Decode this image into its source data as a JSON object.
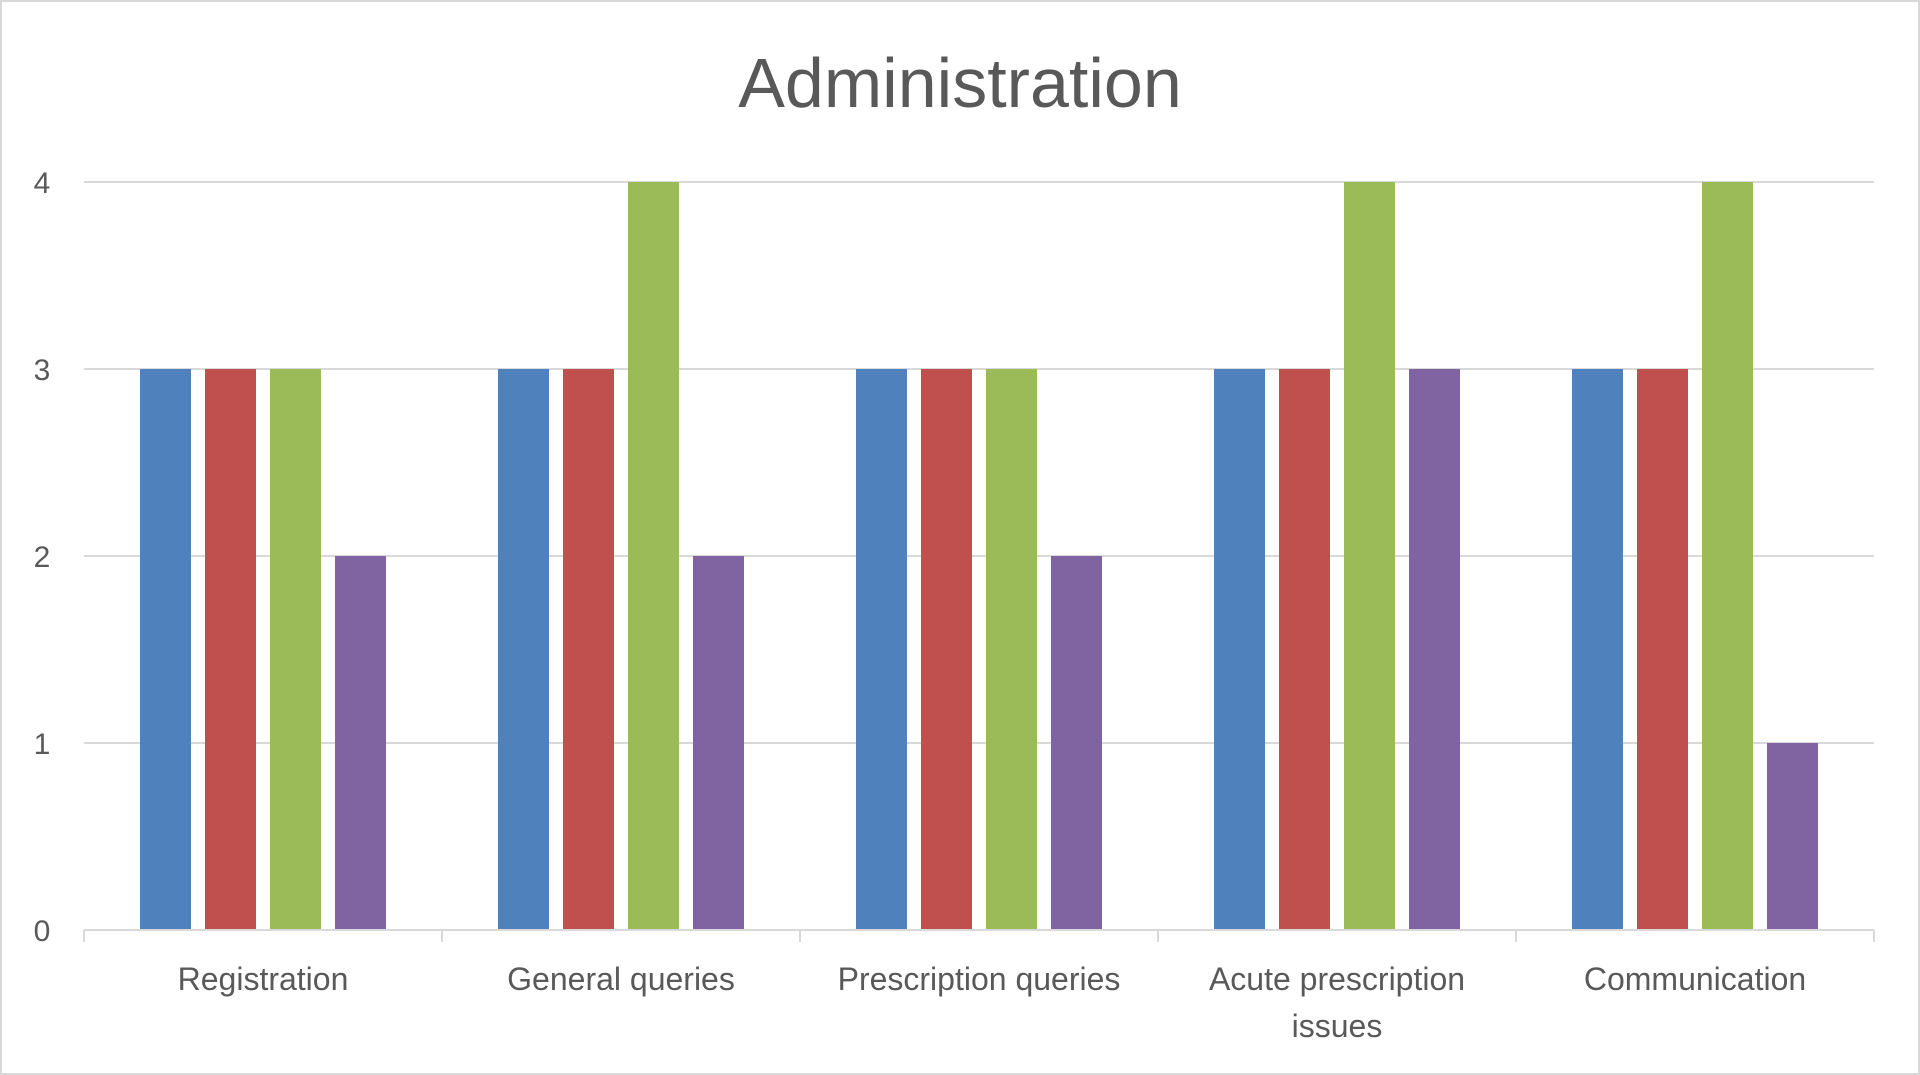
{
  "chart_data": {
    "type": "bar",
    "title": "Administration",
    "xlabel": "",
    "ylabel": "",
    "ylim": [
      0,
      4
    ],
    "yticks": [
      "0",
      "1",
      "2",
      "3",
      "4"
    ],
    "grid": true,
    "categories": [
      [
        "Registration"
      ],
      [
        "General queries"
      ],
      [
        "Prescription queries"
      ],
      [
        "Acute prescription",
        "issues"
      ],
      [
        "Communication"
      ]
    ],
    "series": [
      {
        "color": "#4f81bd",
        "values": [
          3,
          3,
          3,
          3,
          3
        ]
      },
      {
        "color": "#c0504d",
        "values": [
          3,
          3,
          3,
          3,
          3
        ]
      },
      {
        "color": "#9bbb59",
        "values": [
          3,
          4,
          3,
          4,
          4
        ]
      },
      {
        "color": "#8064a2",
        "values": [
          2,
          2,
          2,
          3,
          1
        ]
      }
    ]
  }
}
